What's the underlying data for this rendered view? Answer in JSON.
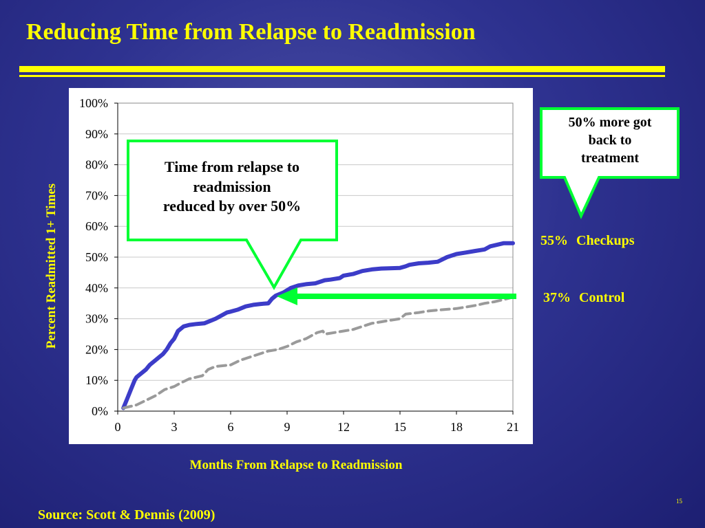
{
  "slide": {
    "title": "Reducing Time from Relapse to Readmission",
    "source": "Source: Scott & Dennis (2009)",
    "page_number": "15"
  },
  "callouts": {
    "time_reduction": [
      "Time from relapse to",
      "readmission",
      "reduced by over 50%"
    ],
    "more_back": [
      "50% more got",
      "back to",
      "treatment"
    ]
  },
  "series_labels": {
    "checkups_pct": "55%",
    "checkups_name": "Checkups",
    "control_pct": "37%",
    "control_name": "Control"
  },
  "colors": {
    "title": "#ffff00",
    "checkups_line": "#3c3cc8",
    "control_line": "#9a9a9a",
    "callout_border": "#00ff33",
    "arrow": "#00ff33"
  },
  "chart_data": {
    "type": "line",
    "xlabel": "Months From Relapse to Readmission",
    "ylabel": "Percent Readmitted 1+ Times",
    "xlim": [
      0,
      21
    ],
    "ylim": [
      0,
      100
    ],
    "xticks": [
      0,
      3,
      6,
      9,
      12,
      15,
      18,
      21
    ],
    "yticks": [
      0,
      10,
      20,
      30,
      40,
      50,
      60,
      70,
      80,
      90,
      100
    ],
    "ytick_labels": [
      "0%",
      "10%",
      "20%",
      "30%",
      "40%",
      "50%",
      "60%",
      "70%",
      "80%",
      "90%",
      "100%"
    ],
    "grid": true,
    "series": [
      {
        "name": "Checkups",
        "style": "solid",
        "x": [
          0.3,
          0.5,
          0.7,
          0.9,
          1.0,
          1.2,
          1.5,
          1.7,
          1.8,
          2.0,
          2.2,
          2.4,
          2.6,
          2.8,
          3.0,
          3.2,
          3.5,
          3.8,
          4.2,
          4.6,
          5.0,
          5.2,
          5.5,
          5.8,
          6.0,
          6.4,
          6.8,
          7.2,
          7.6,
          8.0,
          8.2,
          8.4,
          8.8,
          9.2,
          9.6,
          10.0,
          10.5,
          11.0,
          11.3,
          11.8,
          12.0,
          12.5,
          13.0,
          13.5,
          14.0,
          15.0,
          15.3,
          15.5,
          16.0,
          16.5,
          17.0,
          17.5,
          18.0,
          18.5,
          19.0,
          19.5,
          19.8,
          20.5,
          21.0
        ],
        "y": [
          1,
          4,
          7,
          10,
          11,
          12,
          13.5,
          15,
          15.5,
          16.5,
          17.5,
          18.5,
          20,
          22,
          23.5,
          26,
          27.5,
          28,
          28.3,
          28.5,
          29.5,
          30,
          31,
          32,
          32.3,
          33,
          34,
          34.5,
          34.8,
          35,
          36.5,
          37.5,
          38.5,
          40,
          40.8,
          41.2,
          41.5,
          42.5,
          42.7,
          43.2,
          44,
          44.5,
          45.5,
          46,
          46.3,
          46.5,
          47,
          47.5,
          48,
          48.2,
          48.5,
          50,
          51,
          51.5,
          52,
          52.5,
          53.5,
          54.5,
          54.5
        ]
      },
      {
        "name": "Control",
        "style": "dashed",
        "x": [
          0.3,
          1.0,
          1.5,
          2.0,
          2.5,
          3.0,
          3.3,
          3.8,
          4.5,
          4.8,
          5.2,
          6.0,
          6.5,
          7.0,
          7.5,
          8.0,
          8.5,
          9.0,
          9.5,
          10.0,
          10.3,
          10.6,
          10.9,
          11.0,
          11.5,
          12.0,
          12.5,
          13.0,
          13.5,
          14.0,
          14.5,
          15.0,
          15.3,
          16.0,
          16.5,
          17.0,
          18.0,
          18.5,
          19.0,
          19.5,
          20.0,
          20.5,
          21.0
        ],
        "y": [
          1,
          2,
          3.5,
          5,
          7,
          8,
          9,
          10.5,
          11.5,
          13.5,
          14.5,
          15,
          16.5,
          17.5,
          18.5,
          19.5,
          20,
          21,
          22.5,
          23.5,
          24.5,
          25.5,
          26,
          25,
          25.5,
          26,
          26.5,
          27.5,
          28.5,
          29,
          29.5,
          30,
          31.5,
          32,
          32.5,
          32.8,
          33.3,
          33.8,
          34.3,
          35,
          35.5,
          36.2,
          37
        ]
      }
    ]
  }
}
